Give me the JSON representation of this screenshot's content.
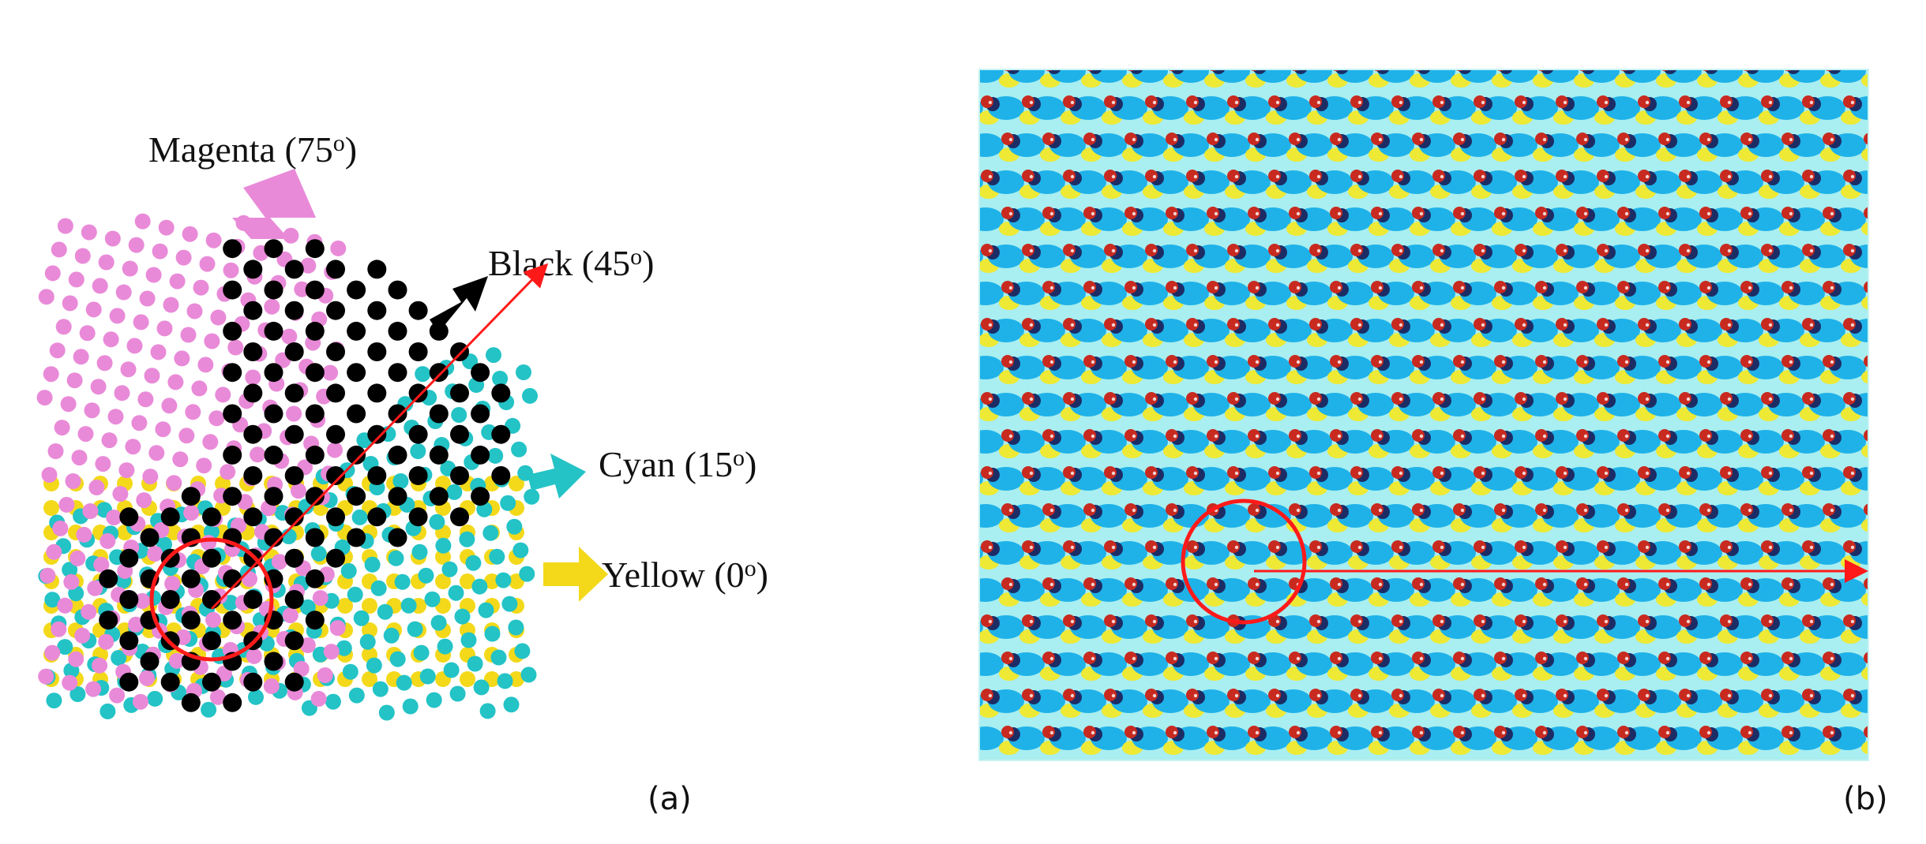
{
  "figure": {
    "panel_a": {
      "label": "(a)",
      "screens": [
        {
          "key": "magenta",
          "name": "Magenta",
          "angle_value": "75",
          "degree_mark": "o",
          "color": "#e98ad8",
          "angle_deg": 75
        },
        {
          "key": "black",
          "name": "Black",
          "angle_value": "45",
          "degree_mark": "o",
          "color": "#000000",
          "angle_deg": 45
        },
        {
          "key": "cyan",
          "name": "Cyan",
          "angle_value": "15",
          "degree_mark": "o",
          "color": "#23c3c6",
          "angle_deg": 15
        },
        {
          "key": "yellow",
          "name": "Yellow",
          "angle_value": "0",
          "degree_mark": "o",
          "color": "#f3d91a",
          "angle_deg": 0
        }
      ]
    },
    "panel_b": {
      "label": "(b)",
      "background": "#a9eef0",
      "dot_colors": {
        "cyan": "#1fb2e9",
        "magenta": "#c82a20",
        "yellow": "#f0e82a",
        "dark": "#1c2d66"
      }
    },
    "annotation_color": "#ff1a1a"
  }
}
